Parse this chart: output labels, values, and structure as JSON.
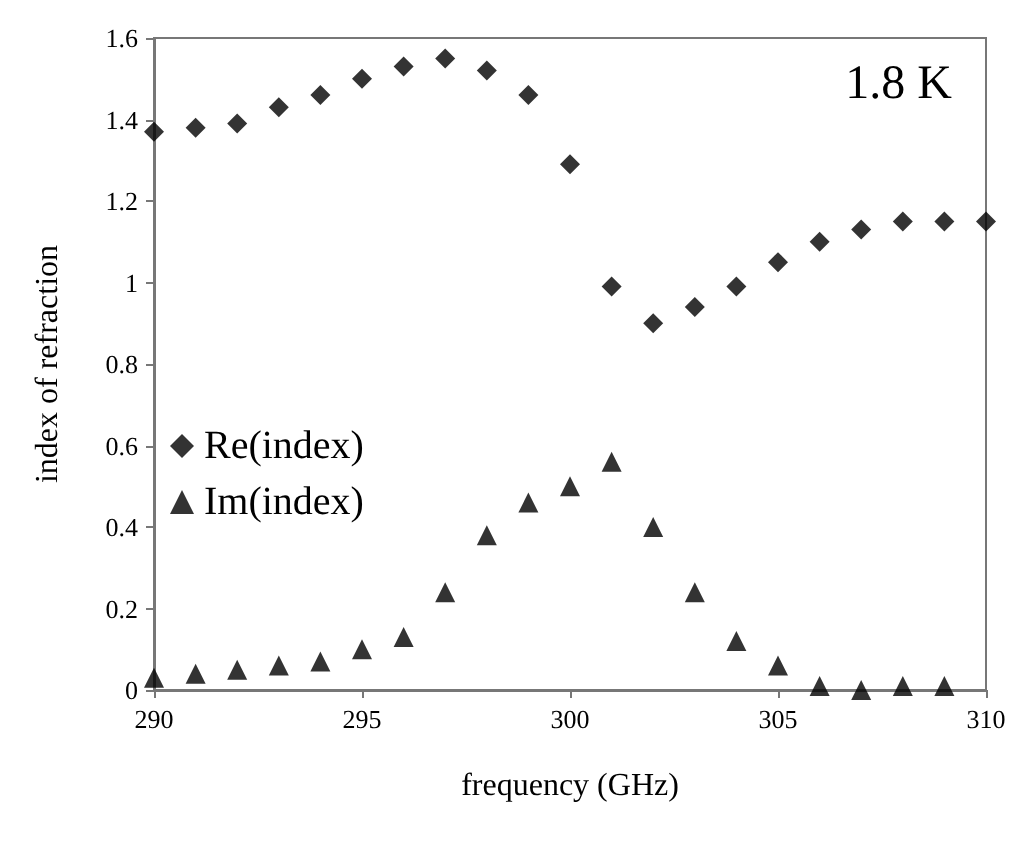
{
  "chart_data": {
    "type": "scatter",
    "xlabel": "frequency (GHz)",
    "ylabel": "index of refraction",
    "annotations": [
      "1.8 K"
    ],
    "xlim": [
      290,
      310
    ],
    "xticks": [
      290,
      295,
      300,
      305,
      310
    ],
    "ylim": [
      0,
      1.6
    ],
    "yticks": [
      0,
      0.2,
      0.4,
      0.6,
      0.8,
      1,
      1.2,
      1.4,
      1.6
    ],
    "grid": false,
    "legend": "left",
    "series": [
      {
        "name": "Re(index)",
        "color": "#000000",
        "marker": "diamond",
        "x": [
          290,
          291,
          292,
          293,
          294,
          295,
          296,
          297,
          298,
          299,
          300,
          301,
          302,
          303,
          304,
          305,
          306,
          307,
          308,
          309,
          310
        ],
        "values": [
          1.37,
          1.38,
          1.39,
          1.43,
          1.46,
          1.5,
          1.53,
          1.55,
          1.52,
          1.46,
          1.29,
          0.99,
          0.9,
          0.94,
          0.99,
          1.05,
          1.1,
          1.13,
          1.15,
          1.15,
          1.15
        ]
      },
      {
        "name": "Im(index)",
        "color": "#000000",
        "marker": "triangle",
        "x": [
          290,
          291,
          292,
          293,
          294,
          295,
          296,
          297,
          298,
          299,
          300,
          301,
          302,
          303,
          304,
          305,
          306,
          307,
          308,
          309
        ],
        "values": [
          0.03,
          0.04,
          0.05,
          0.06,
          0.07,
          0.1,
          0.13,
          0.24,
          0.38,
          0.46,
          0.5,
          0.56,
          0.4,
          0.24,
          0.12,
          0.06,
          0.01,
          0,
          0.01,
          0.01
        ]
      }
    ]
  }
}
